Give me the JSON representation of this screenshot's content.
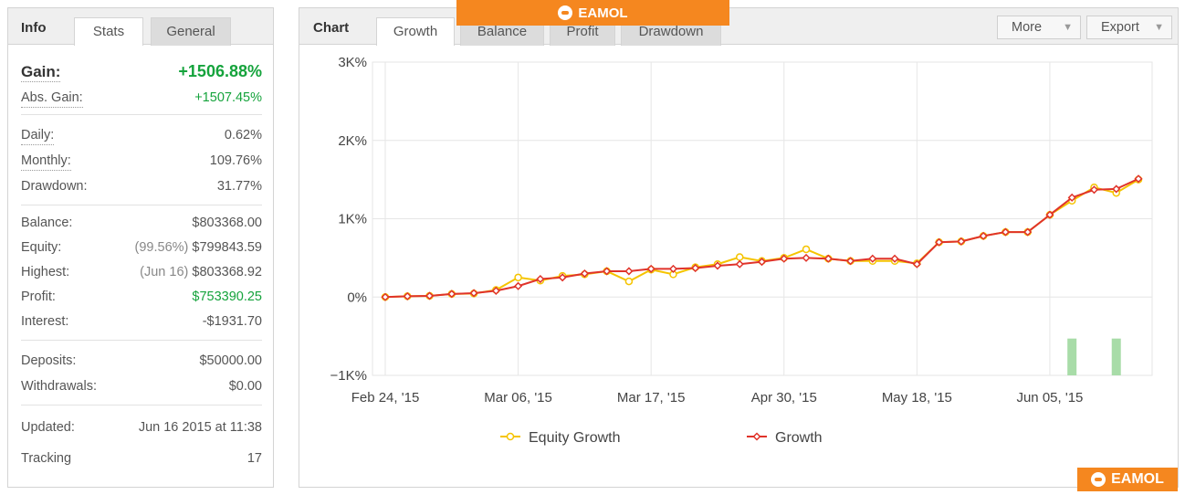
{
  "info_panel": {
    "tabs": {
      "title": "Info",
      "stats": "Stats",
      "general": "General"
    },
    "gain": {
      "label": "Gain:",
      "value": "+1506.88%"
    },
    "abs_gain": {
      "label": "Abs. Gain:",
      "value": "+1507.45%"
    },
    "daily": {
      "label": "Daily:",
      "value": "0.62%"
    },
    "monthly": {
      "label": "Monthly:",
      "value": "109.76%"
    },
    "drawdown": {
      "label": "Drawdown:",
      "value": "31.77%"
    },
    "balance": {
      "label": "Balance:",
      "value": "$803368.00"
    },
    "equity": {
      "label": "Equity:",
      "hint": "(99.56%)",
      "value": "$799843.59"
    },
    "highest": {
      "label": "Highest:",
      "hint": "(Jun 16)",
      "value": "$803368.92"
    },
    "profit": {
      "label": "Profit:",
      "value": "$753390.25"
    },
    "interest": {
      "label": "Interest:",
      "value": "-$1931.70"
    },
    "deposits": {
      "label": "Deposits:",
      "value": "$50000.00"
    },
    "withdrawals": {
      "label": "Withdrawals:",
      "value": "$0.00"
    },
    "updated": {
      "label": "Updated:",
      "value": "Jun 16 2015 at 11:38"
    },
    "tracking": {
      "label": "Tracking",
      "value": "17"
    }
  },
  "chart_panel": {
    "title": "Chart",
    "tabs": [
      "Growth",
      "Balance",
      "Profit",
      "Drawdown"
    ],
    "more_label": "More",
    "export_label": "Export"
  },
  "watermark": {
    "text": "EAMOL"
  },
  "colors": {
    "equity_line": "#f5c400",
    "growth_line": "#e0332a",
    "bars": "#a8dca8",
    "grid": "#e6e6e6",
    "green_text": "#15a33c",
    "watermark": "#f5871f"
  },
  "chart_data": {
    "type": "line",
    "title": "",
    "xlabel": "",
    "ylabel": "",
    "ylim": [
      -1000,
      3000
    ],
    "y_ticks": [
      -1000,
      0,
      1000,
      2000,
      3000
    ],
    "y_tick_labels": [
      "−1K%",
      "0%",
      "1K%",
      "2K%",
      "3K%"
    ],
    "x_tick_labels": [
      "Feb 24, '15",
      "Mar 06, '15",
      "Mar 17, '15",
      "Apr 30, '15",
      "May 18, '15",
      "Jun 05, '15"
    ],
    "x_tick_indices": [
      0,
      6,
      12,
      18,
      24,
      30
    ],
    "grid": true,
    "legend_position": "bottom",
    "series": [
      {
        "name": "Equity Growth",
        "values": [
          0,
          10,
          15,
          40,
          45,
          90,
          250,
          210,
          270,
          290,
          330,
          200,
          350,
          290,
          380,
          420,
          510,
          460,
          500,
          610,
          490,
          460,
          460,
          460,
          430,
          700,
          710,
          780,
          830,
          830,
          1050,
          1230,
          1400,
          1330,
          1500
        ]
      },
      {
        "name": "Growth",
        "values": [
          0,
          10,
          15,
          40,
          50,
          80,
          140,
          230,
          250,
          300,
          330,
          330,
          360,
          360,
          370,
          400,
          420,
          450,
          490,
          500,
          490,
          460,
          490,
          490,
          420,
          700,
          710,
          780,
          830,
          830,
          1050,
          1270,
          1370,
          1380,
          1510
        ]
      }
    ],
    "bars": {
      "name": "",
      "indices": [
        31,
        33
      ],
      "values": [
        -530,
        -530
      ]
    }
  }
}
